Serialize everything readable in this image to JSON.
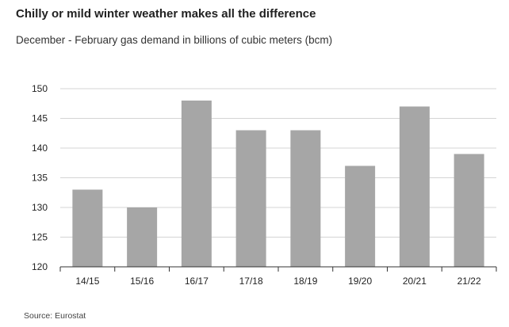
{
  "title": "Chilly or mild winter weather makes all the difference",
  "subtitle": "December - February gas demand in billions of cubic meters (bcm)",
  "source": "Source: Eurostat",
  "chart_data": {
    "type": "bar",
    "categories": [
      "14/15",
      "15/16",
      "16/17",
      "17/18",
      "18/19",
      "19/20",
      "20/21",
      "21/22"
    ],
    "values": [
      133,
      130,
      148,
      143,
      143,
      137,
      147,
      139
    ],
    "ylim": [
      120,
      150
    ],
    "yticks": [
      120,
      125,
      130,
      135,
      140,
      145,
      150
    ],
    "bar_color": "#a6a6a6",
    "grid": true,
    "grid_color": "#d4d4d4",
    "xlabel": "",
    "ylabel": ""
  }
}
